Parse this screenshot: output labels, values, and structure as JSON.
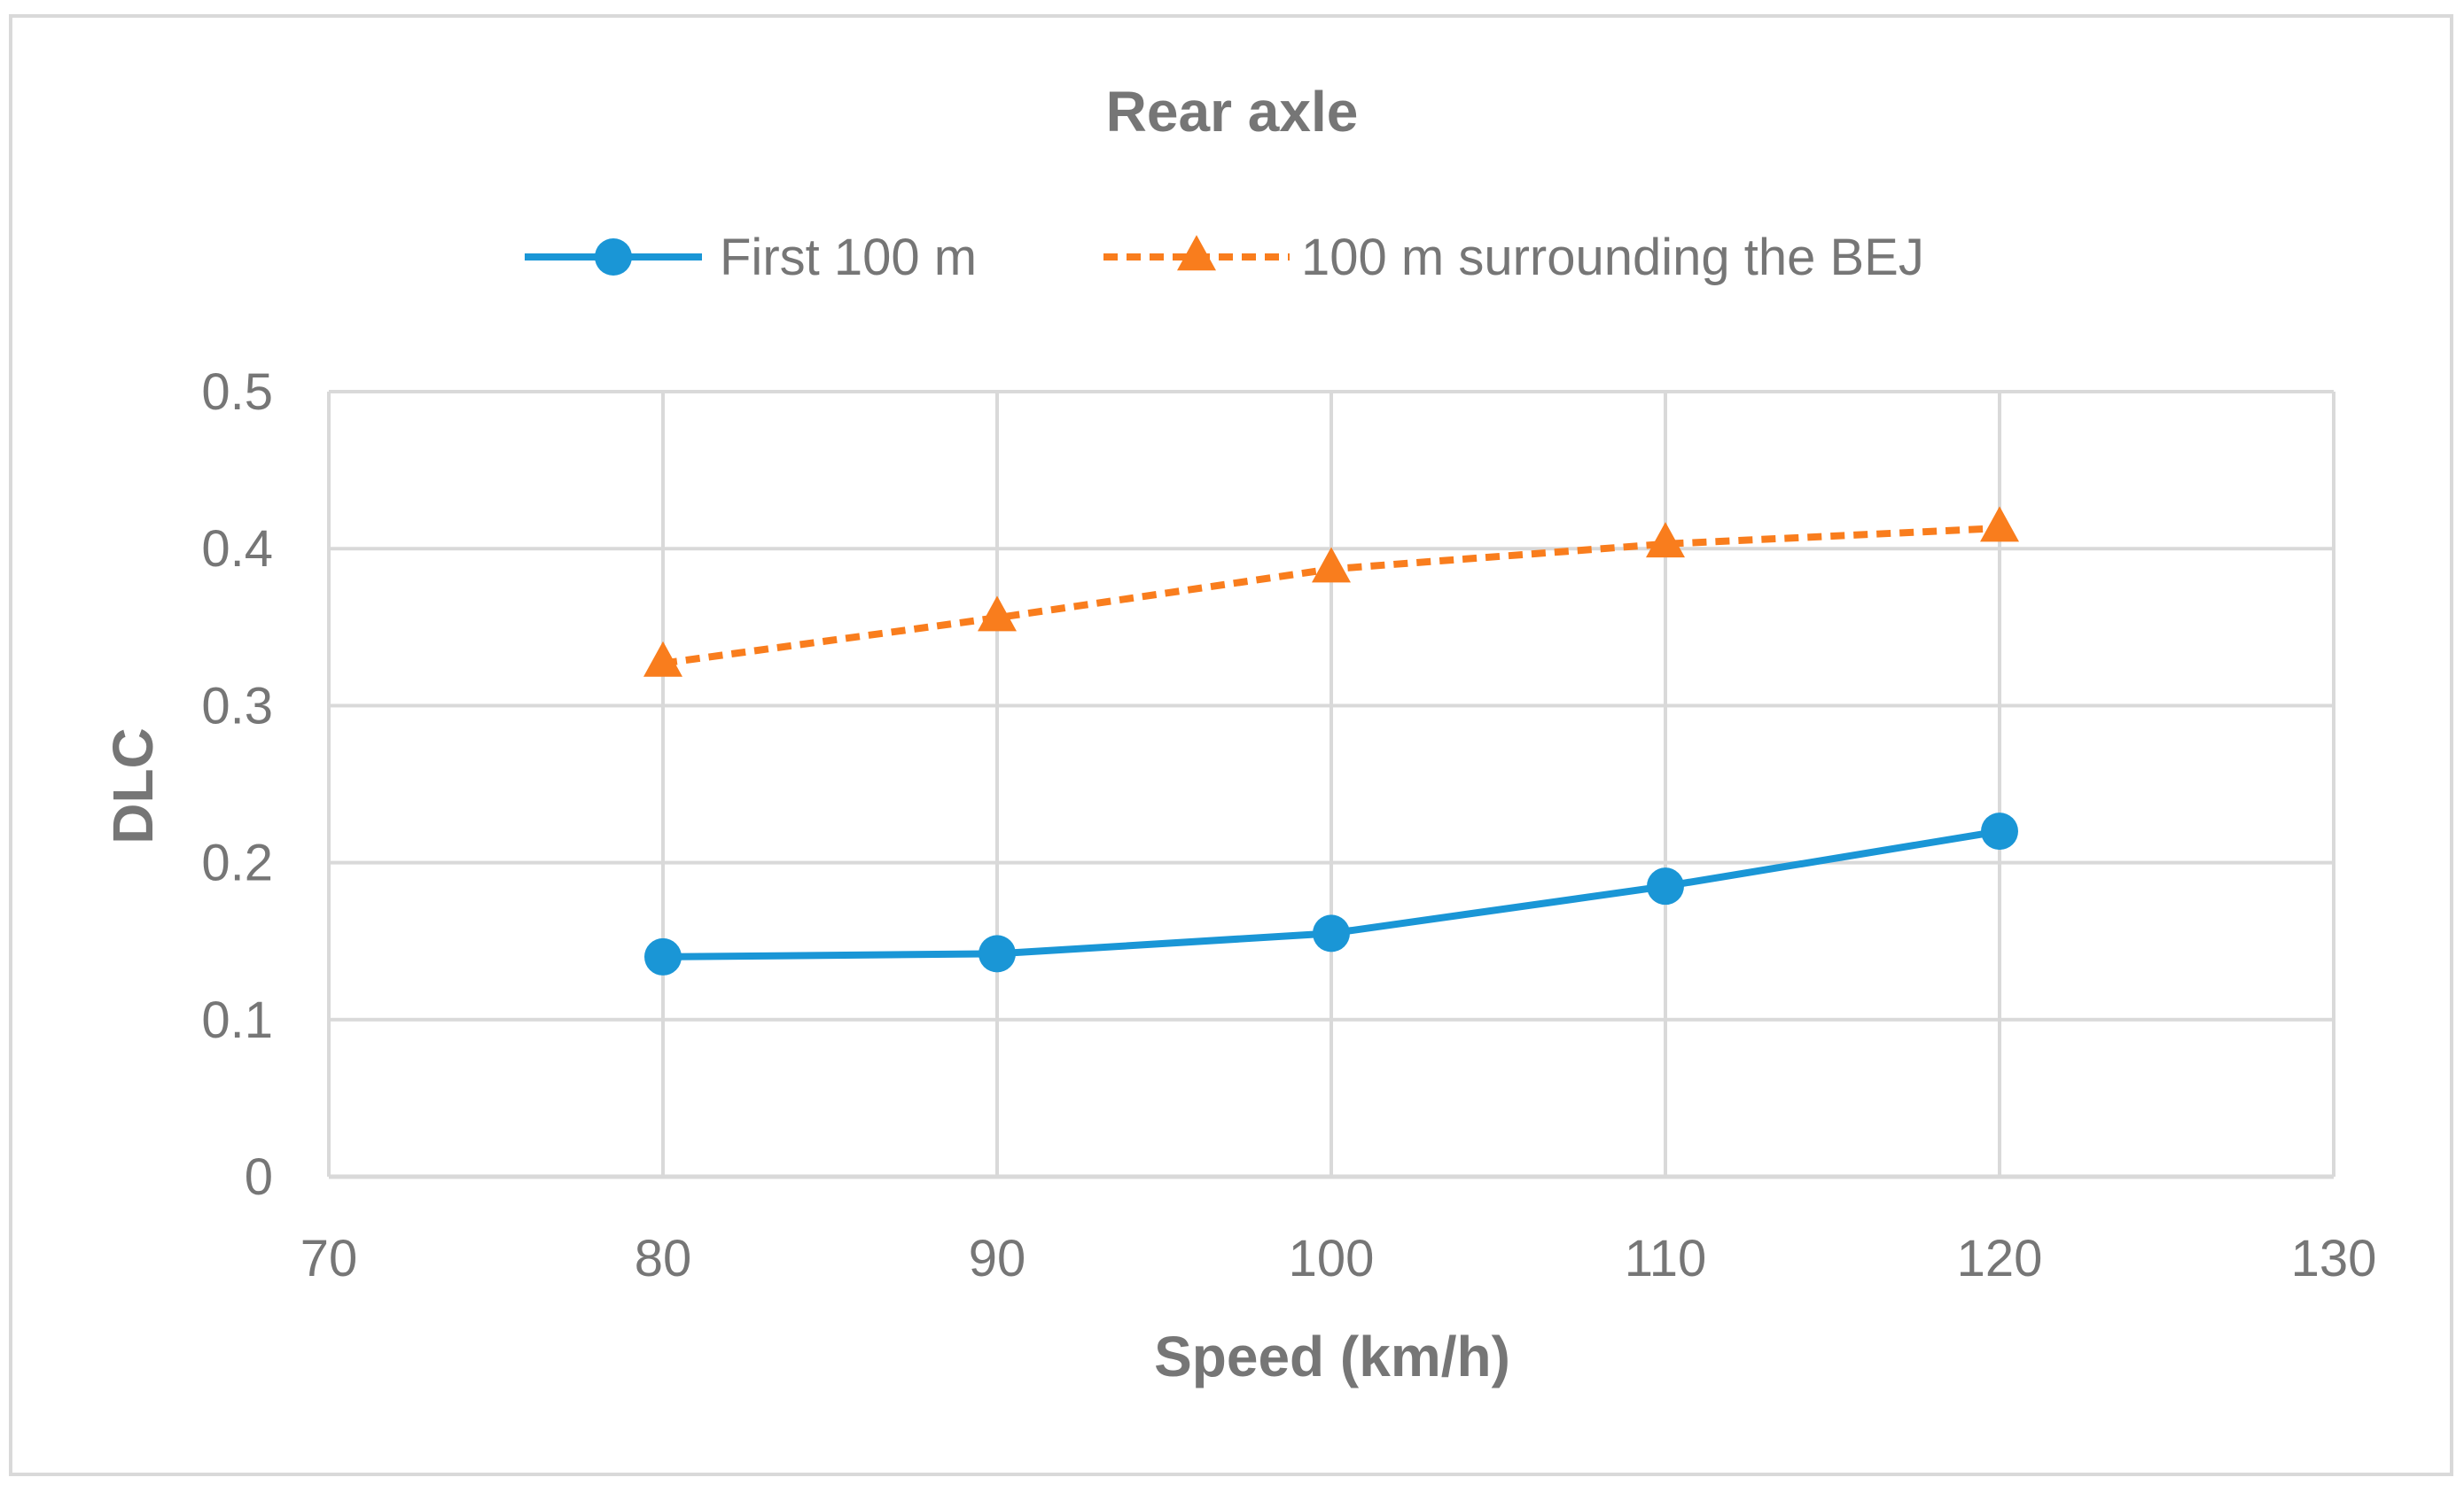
{
  "chart_data": {
    "type": "line",
    "title": "Rear axle",
    "xlabel": "Speed (km/h)",
    "ylabel": "DLC",
    "xlim": [
      70,
      130
    ],
    "ylim": [
      0,
      0.5
    ],
    "x_ticks": [
      "70",
      "80",
      "90",
      "100",
      "110",
      "120",
      "130"
    ],
    "y_ticks": [
      "0",
      "0.1",
      "0.2",
      "0.3",
      "0.4",
      "0.5"
    ],
    "grid": true,
    "legend_position": "top",
    "series": [
      {
        "name": "First 100 m",
        "color": "#1a96d6",
        "line_style": "solid",
        "marker": "circle",
        "x": [
          80,
          90,
          100,
          110,
          120
        ],
        "y": [
          0.14,
          0.142,
          0.155,
          0.185,
          0.22
        ]
      },
      {
        "name": "100 m surrounding the BEJ",
        "color": "#f97d1d",
        "line_style": "dashed",
        "marker": "triangle",
        "x": [
          80,
          90,
          100,
          110,
          120
        ],
        "y": [
          0.327,
          0.356,
          0.387,
          0.403,
          0.413
        ]
      }
    ]
  }
}
